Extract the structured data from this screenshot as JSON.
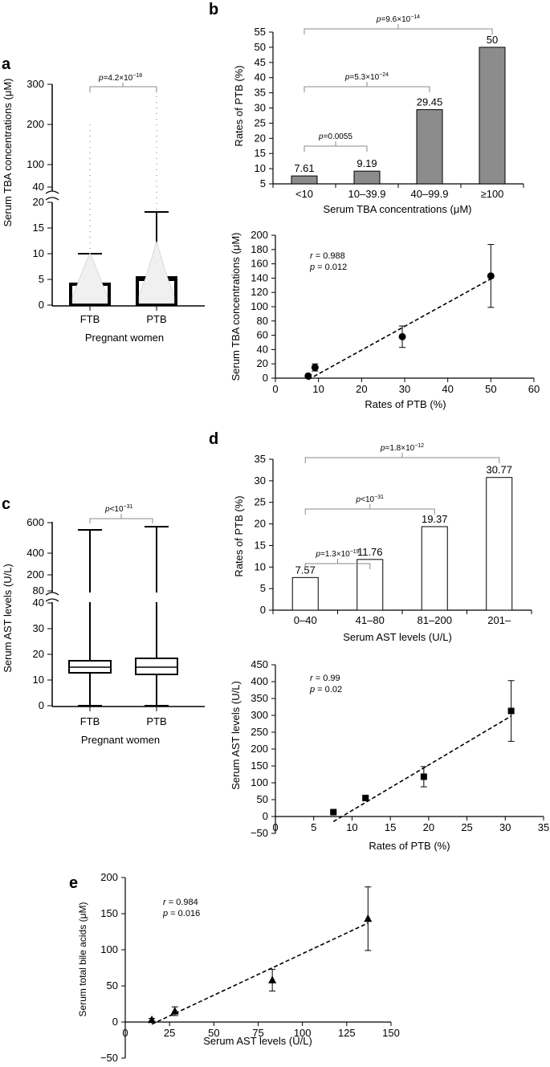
{
  "chart_data": [
    {
      "panel": "a",
      "type": "box_strip",
      "ylabel": "Serum TBA concentrations (μM)",
      "xlabel": "Pregnant women",
      "categories": [
        "FTB",
        "PTB"
      ],
      "yticks_low": [
        "0",
        "5",
        "10",
        "15",
        "20"
      ],
      "yticks_high": [
        "40",
        "100",
        "200",
        "300"
      ],
      "ylim_low": [
        0,
        20
      ],
      "ylim_high": [
        40,
        300
      ],
      "boxes": [
        {
          "name": "FTB",
          "q1": 1.5,
          "median": 2.6,
          "q3": 4.5,
          "whisker_high": 10,
          "max": 200
        },
        {
          "name": "PTB",
          "q1": 1.5,
          "median": 3.0,
          "q3": 5.5,
          "whisker_high": 18,
          "max": 270
        }
      ],
      "annotation": {
        "p": "p",
        "eq": "=4.2×10",
        "exp": "−18"
      }
    },
    {
      "panel": "b",
      "type": "bar",
      "ylabel": "Rates of PTB (%)",
      "xlabel": "Serum TBA concentrations (μM)",
      "categories": [
        "<10",
        "10–39.9",
        "40–99.9",
        "≥100"
      ],
      "values": [
        7.61,
        9.19,
        29.45,
        50
      ],
      "labels": [
        "7.61",
        "9.19",
        "29.45",
        "50"
      ],
      "ylim": [
        5,
        55
      ],
      "yticks": [
        "5",
        "10",
        "15",
        "20",
        "25",
        "30",
        "35",
        "40",
        "45",
        "50",
        "55"
      ],
      "bar_color": "#8c8c8c",
      "annotations": [
        {
          "from": 0,
          "to": 1,
          "p": "p",
          "eq": "=0.0055",
          "exp": ""
        },
        {
          "from": 0,
          "to": 2,
          "p": "p",
          "eq": "=5.3×10",
          "exp": "−24"
        },
        {
          "from": 0,
          "to": 3,
          "p": "p",
          "eq": "=9.6×10",
          "exp": "−14"
        }
      ]
    },
    {
      "panel": "b-lower",
      "type": "scatter",
      "ylabel": "Serum TBA concentrations (μM)",
      "xlabel": "Rates of PTB (%)",
      "xlim": [
        0,
        60
      ],
      "ylim": [
        0,
        200
      ],
      "xticks": [
        "0",
        "10",
        "20",
        "30",
        "40",
        "50",
        "60"
      ],
      "yticks": [
        "0",
        "20",
        "40",
        "60",
        "80",
        "100",
        "120",
        "140",
        "160",
        "180",
        "200"
      ],
      "x": [
        7.61,
        9.19,
        29.45,
        50
      ],
      "y": [
        3,
        15,
        58,
        143
      ],
      "err": [
        1,
        5,
        15,
        44
      ],
      "marker": "circle",
      "fit": [
        [
          7.61,
          -2
        ],
        [
          50,
          139
        ]
      ],
      "stats": {
        "r": "r",
        "r_val": " = 0.988",
        "p": "p",
        "p_val": " = 0.012"
      }
    },
    {
      "panel": "c",
      "type": "box",
      "ylabel": "Serum AST levels (U/L)",
      "xlabel": "Pregnant women",
      "categories": [
        "FTB",
        "PTB"
      ],
      "yticks_low": [
        "0",
        "10",
        "20",
        "30",
        "40"
      ],
      "yticks_high": [
        "80",
        "200",
        "400",
        "600"
      ],
      "ylim_low": [
        0,
        40
      ],
      "ylim_high": [
        80,
        600
      ],
      "boxes": [
        {
          "name": "FTB",
          "min": 0,
          "q1": 13,
          "median": 15,
          "q3": 17.5,
          "max": 540
        },
        {
          "name": "PTB",
          "min": 0,
          "q1": 12,
          "median": 15,
          "q3": 18.5,
          "max": 575
        }
      ],
      "annotation": {
        "p": "p",
        "eq": "<10",
        "exp": "−31"
      }
    },
    {
      "panel": "d",
      "type": "bar",
      "ylabel": "Rates of PTB (%)",
      "xlabel": "Serum AST levels (U/L)",
      "categories": [
        "0–40",
        "41–80",
        "81–200",
        "201–"
      ],
      "values": [
        7.57,
        11.76,
        19.37,
        30.77
      ],
      "labels": [
        "7.57",
        "11.76",
        "19.37",
        "30.77"
      ],
      "ylim": [
        0,
        35
      ],
      "yticks": [
        "0",
        "5",
        "10",
        "15",
        "20",
        "25",
        "30",
        "35"
      ],
      "bar_color": "#ffffff",
      "annotations": [
        {
          "from": 0,
          "to": 1,
          "p": "p",
          "eq": "=1.3×10",
          "exp": "−19"
        },
        {
          "from": 0,
          "to": 2,
          "p": "p",
          "eq": "<10",
          "exp": "−31"
        },
        {
          "from": 0,
          "to": 3,
          "p": "p",
          "eq": "=1.8×10",
          "exp": "−12"
        }
      ]
    },
    {
      "panel": "d-lower",
      "type": "scatter",
      "ylabel": "Serum AST levels (U/L)",
      "xlabel": "Rates of PTB (%)",
      "xlim": [
        0,
        35
      ],
      "ylim": [
        -50,
        450
      ],
      "xticks": [
        "0",
        "5",
        "10",
        "15",
        "20",
        "25",
        "30",
        "35"
      ],
      "yticks": [
        "−50",
        "0",
        "50",
        "100",
        "150",
        "200",
        "250",
        "300",
        "350",
        "400",
        "450"
      ],
      "x": [
        7.57,
        11.76,
        19.37,
        30.77
      ],
      "y": [
        13,
        55,
        118,
        313
      ],
      "err": [
        3,
        5,
        30,
        90
      ],
      "marker": "square",
      "fit": [
        [
          7.57,
          -15
        ],
        [
          30.77,
          298
        ]
      ],
      "stats": {
        "r": "r",
        "r_val": " = 0.99",
        "p": "p",
        "p_val": " = 0.02"
      }
    },
    {
      "panel": "e",
      "type": "scatter",
      "ylabel": "Serum total bile acids (μM)",
      "xlabel": "Serum AST levels (U/L)",
      "xlim": [
        0,
        150
      ],
      "ylim": [
        -50,
        200
      ],
      "xticks": [
        "0",
        "25",
        "50",
        "75",
        "100",
        "125",
        "150"
      ],
      "yticks": [
        "−50",
        "0",
        "50",
        "100",
        "150",
        "200"
      ],
      "x": [
        15,
        28,
        83,
        137
      ],
      "y": [
        3,
        15,
        58,
        143
      ],
      "err": [
        2,
        6,
        15,
        44
      ],
      "marker": "triangle",
      "fit": [
        [
          15,
          -3
        ],
        [
          137,
          137
        ]
      ],
      "stats": {
        "r": "r",
        "r_val": " = 0.984",
        "p": "p",
        "p_val": " = 0.016"
      }
    }
  ]
}
